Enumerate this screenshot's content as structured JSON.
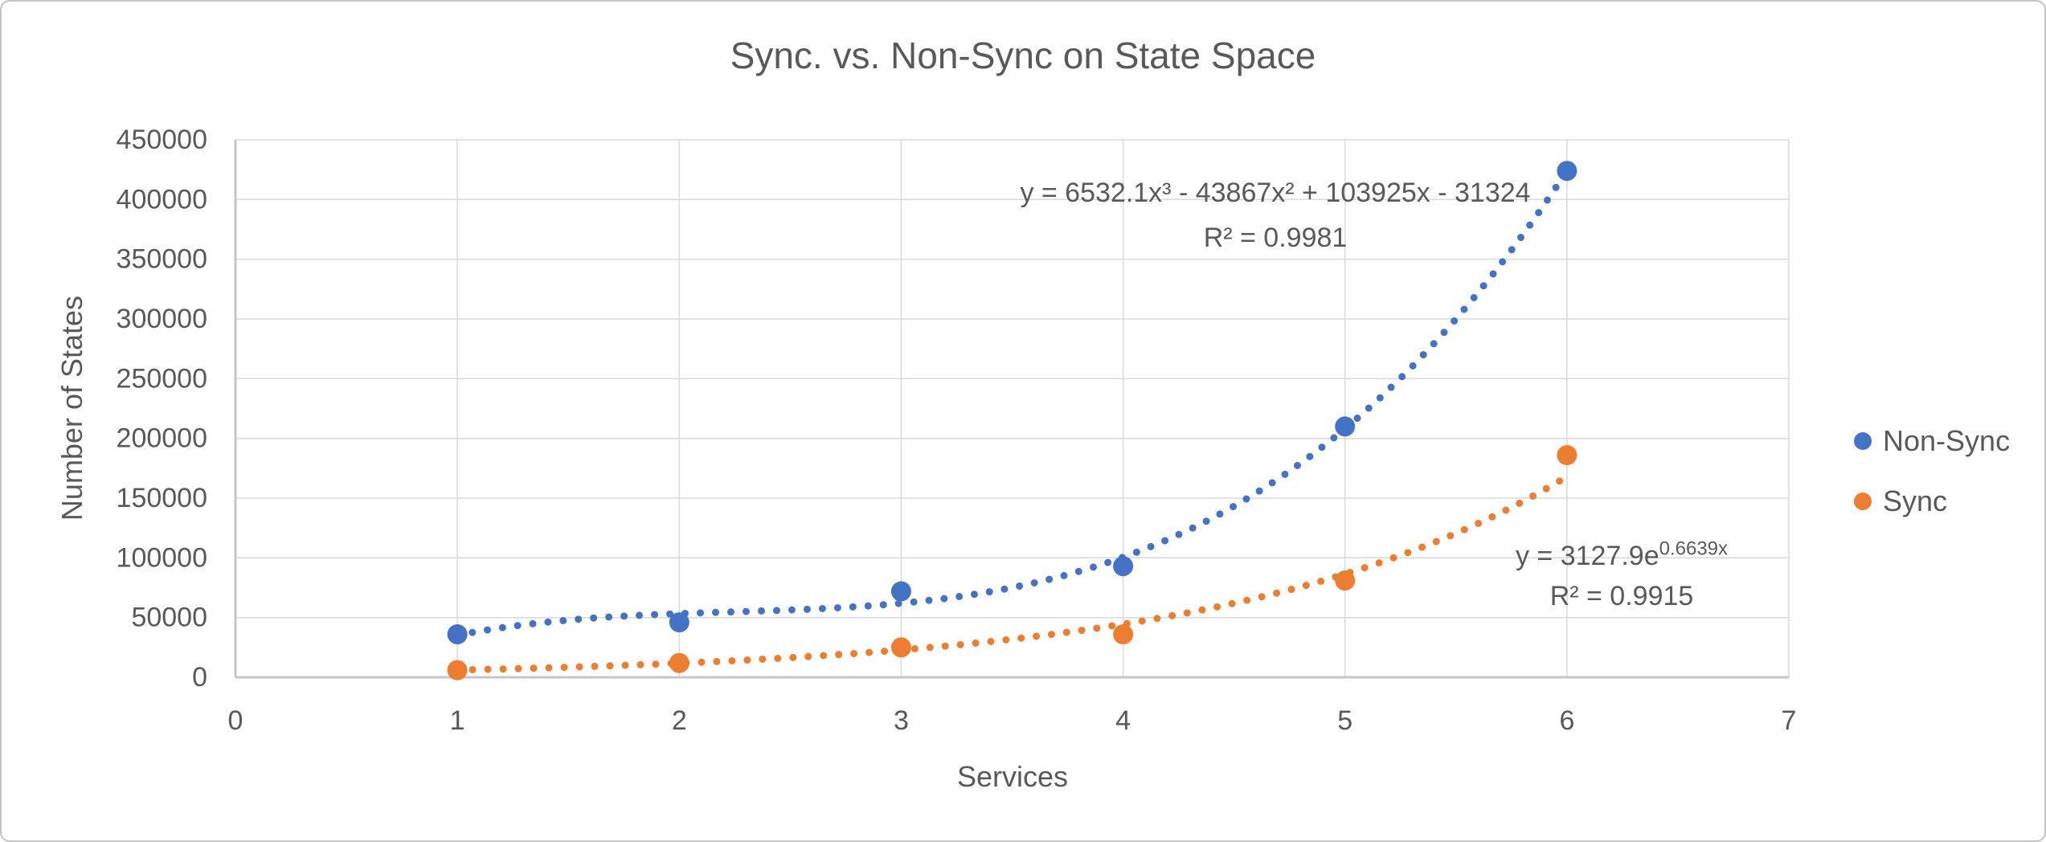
{
  "colors": {
    "text": "#595959",
    "gridline": "#D9D9D9",
    "axis": "#C6C6C6",
    "border": "#C3C3C3",
    "background": "#FFFFFF"
  },
  "chart_data": {
    "type": "scatter",
    "title": "Sync. vs. Non-Sync on State Space",
    "xlabel": "Services",
    "ylabel": "Number of States",
    "xlim": [
      0,
      7
    ],
    "ylim": [
      0,
      450000
    ],
    "x_ticks": [
      0,
      1,
      2,
      3,
      4,
      5,
      6,
      7
    ],
    "y_ticks": [
      0,
      50000,
      100000,
      150000,
      200000,
      250000,
      300000,
      350000,
      400000,
      450000
    ],
    "grid": true,
    "legend_position": "right",
    "x": [
      1,
      2,
      3,
      4,
      5,
      6
    ],
    "series": [
      {
        "name": "Non-Sync",
        "color": "#4472C4",
        "marker": "circle",
        "values": [
          36000,
          46000,
          72000,
          93000,
          210000,
          424000
        ],
        "trendline": {
          "type": "polynomial3",
          "style": "dotted",
          "coefficients": {
            "a3": 6532.1,
            "a2": -43867,
            "a1": 103925,
            "a0": -31324
          },
          "r2": 0.9981,
          "equation_text": "y = 6532.1x³ - 43867x² + 103925x - 31324",
          "r2_text": "R² = 0.9981"
        }
      },
      {
        "name": "Sync",
        "color": "#ED7D31",
        "marker": "circle",
        "values": [
          6000,
          12000,
          25000,
          36000,
          81000,
          186000
        ],
        "trendline": {
          "type": "exponential",
          "style": "dotted",
          "coefficients": {
            "a": 3127.9,
            "b": 0.6639
          },
          "r2": 0.9915,
          "equation_base": "y = 3127.9e",
          "equation_exponent": "0.6639x",
          "r2_text": "R² = 0.9915"
        }
      }
    ]
  }
}
